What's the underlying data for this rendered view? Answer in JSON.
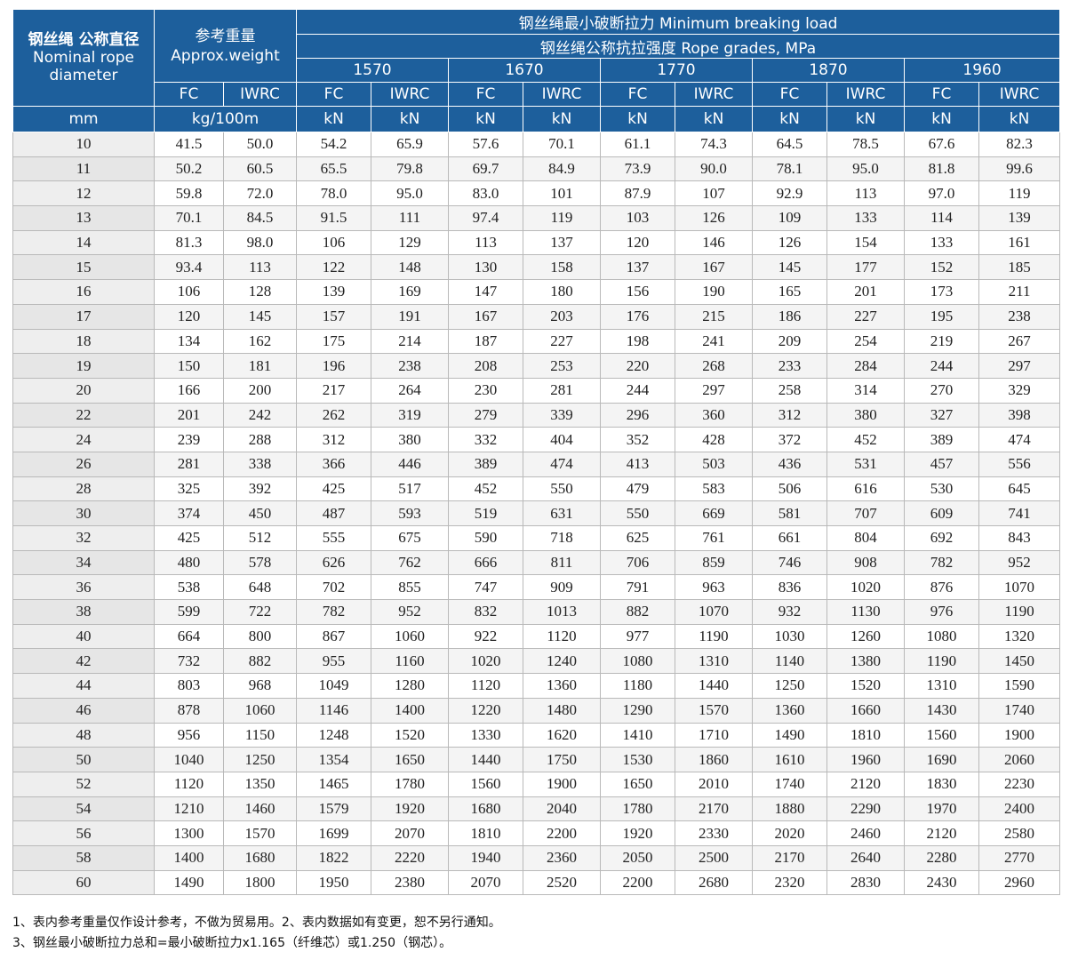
{
  "header": {
    "diameter_cn": "钢丝绳 公称直径",
    "diameter_en": "Nominal rope diameter",
    "weight_cn": "参考重量",
    "weight_en": "Approx.weight",
    "mbl": "钢丝绳最小破断拉力 Minimum breaking load",
    "grades": "钢丝绳公称抗拉强度 Rope grades, MPa",
    "grade_values": [
      "1570",
      "1670",
      "1770",
      "1870",
      "1960"
    ],
    "core_fc": "FC",
    "core_iwrc": "IWRC",
    "unit_mm": "mm",
    "unit_weight": "kg/100m",
    "unit_kn": "kN"
  },
  "rows": [
    [
      "10",
      "41.5",
      "50.0",
      "54.2",
      "65.9",
      "57.6",
      "70.1",
      "61.1",
      "74.3",
      "64.5",
      "78.5",
      "67.6",
      "82.3"
    ],
    [
      "11",
      "50.2",
      "60.5",
      "65.5",
      "79.8",
      "69.7",
      "84.9",
      "73.9",
      "90.0",
      "78.1",
      "95.0",
      "81.8",
      "99.6"
    ],
    [
      "12",
      "59.8",
      "72.0",
      "78.0",
      "95.0",
      "83.0",
      "101",
      "87.9",
      "107",
      "92.9",
      "113",
      "97.0",
      "119"
    ],
    [
      "13",
      "70.1",
      "84.5",
      "91.5",
      "111",
      "97.4",
      "119",
      "103",
      "126",
      "109",
      "133",
      "114",
      "139"
    ],
    [
      "14",
      "81.3",
      "98.0",
      "106",
      "129",
      "113",
      "137",
      "120",
      "146",
      "126",
      "154",
      "133",
      "161"
    ],
    [
      "15",
      "93.4",
      "113",
      "122",
      "148",
      "130",
      "158",
      "137",
      "167",
      "145",
      "177",
      "152",
      "185"
    ],
    [
      "16",
      "106",
      "128",
      "139",
      "169",
      "147",
      "180",
      "156",
      "190",
      "165",
      "201",
      "173",
      "211"
    ],
    [
      "17",
      "120",
      "145",
      "157",
      "191",
      "167",
      "203",
      "176",
      "215",
      "186",
      "227",
      "195",
      "238"
    ],
    [
      "18",
      "134",
      "162",
      "175",
      "214",
      "187",
      "227",
      "198",
      "241",
      "209",
      "254",
      "219",
      "267"
    ],
    [
      "19",
      "150",
      "181",
      "196",
      "238",
      "208",
      "253",
      "220",
      "268",
      "233",
      "284",
      "244",
      "297"
    ],
    [
      "20",
      "166",
      "200",
      "217",
      "264",
      "230",
      "281",
      "244",
      "297",
      "258",
      "314",
      "270",
      "329"
    ],
    [
      "22",
      "201",
      "242",
      "262",
      "319",
      "279",
      "339",
      "296",
      "360",
      "312",
      "380",
      "327",
      "398"
    ],
    [
      "24",
      "239",
      "288",
      "312",
      "380",
      "332",
      "404",
      "352",
      "428",
      "372",
      "452",
      "389",
      "474"
    ],
    [
      "26",
      "281",
      "338",
      "366",
      "446",
      "389",
      "474",
      "413",
      "503",
      "436",
      "531",
      "457",
      "556"
    ],
    [
      "28",
      "325",
      "392",
      "425",
      "517",
      "452",
      "550",
      "479",
      "583",
      "506",
      "616",
      "530",
      "645"
    ],
    [
      "30",
      "374",
      "450",
      "487",
      "593",
      "519",
      "631",
      "550",
      "669",
      "581",
      "707",
      "609",
      "741"
    ],
    [
      "32",
      "425",
      "512",
      "555",
      "675",
      "590",
      "718",
      "625",
      "761",
      "661",
      "804",
      "692",
      "843"
    ],
    [
      "34",
      "480",
      "578",
      "626",
      "762",
      "666",
      "811",
      "706",
      "859",
      "746",
      "908",
      "782",
      "952"
    ],
    [
      "36",
      "538",
      "648",
      "702",
      "855",
      "747",
      "909",
      "791",
      "963",
      "836",
      "1020",
      "876",
      "1070"
    ],
    [
      "38",
      "599",
      "722",
      "782",
      "952",
      "832",
      "1013",
      "882",
      "1070",
      "932",
      "1130",
      "976",
      "1190"
    ],
    [
      "40",
      "664",
      "800",
      "867",
      "1060",
      "922",
      "1120",
      "977",
      "1190",
      "1030",
      "1260",
      "1080",
      "1320"
    ],
    [
      "42",
      "732",
      "882",
      "955",
      "1160",
      "1020",
      "1240",
      "1080",
      "1310",
      "1140",
      "1380",
      "1190",
      "1450"
    ],
    [
      "44",
      "803",
      "968",
      "1049",
      "1280",
      "1120",
      "1360",
      "1180",
      "1440",
      "1250",
      "1520",
      "1310",
      "1590"
    ],
    [
      "46",
      "878",
      "1060",
      "1146",
      "1400",
      "1220",
      "1480",
      "1290",
      "1570",
      "1360",
      "1660",
      "1430",
      "1740"
    ],
    [
      "48",
      "956",
      "1150",
      "1248",
      "1520",
      "1330",
      "1620",
      "1410",
      "1710",
      "1490",
      "1810",
      "1560",
      "1900"
    ],
    [
      "50",
      "1040",
      "1250",
      "1354",
      "1650",
      "1440",
      "1750",
      "1530",
      "1860",
      "1610",
      "1960",
      "1690",
      "2060"
    ],
    [
      "52",
      "1120",
      "1350",
      "1465",
      "1780",
      "1560",
      "1900",
      "1650",
      "2010",
      "1740",
      "2120",
      "1830",
      "2230"
    ],
    [
      "54",
      "1210",
      "1460",
      "1579",
      "1920",
      "1680",
      "2040",
      "1780",
      "2170",
      "1880",
      "2290",
      "1970",
      "2400"
    ],
    [
      "56",
      "1300",
      "1570",
      "1699",
      "2070",
      "1810",
      "2200",
      "1920",
      "2330",
      "2020",
      "2460",
      "2120",
      "2580"
    ],
    [
      "58",
      "1400",
      "1680",
      "1822",
      "2220",
      "1940",
      "2360",
      "2050",
      "2500",
      "2170",
      "2640",
      "2280",
      "2770"
    ],
    [
      "60",
      "1490",
      "1800",
      "1950",
      "2380",
      "2070",
      "2520",
      "2200",
      "2680",
      "2320",
      "2830",
      "2430",
      "2960"
    ]
  ],
  "notes": [
    "1、表内参考重量仅作设计参考，不做为贸易用。2、表内数据如有变更，恕不另行通知。",
    "3、钢丝最小破断拉力总和=最小破断拉力x1.165（纤维芯）或1.250（钢芯）。"
  ]
}
